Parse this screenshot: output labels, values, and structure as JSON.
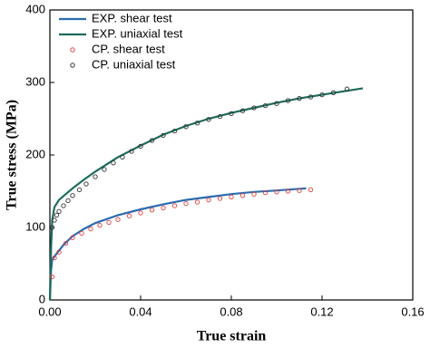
{
  "chart_data": {
    "type": "line",
    "xlabel": "True strain",
    "ylabel": "True stress (MPa)",
    "xlim": [
      0,
      0.16
    ],
    "ylim": [
      0,
      400
    ],
    "xticks": [
      {
        "value": 0,
        "label": "0.00"
      },
      0.04,
      0.08,
      0.12,
      0.16
    ],
    "yticks": [
      0,
      100,
      200,
      300,
      400
    ],
    "legend": "upper left",
    "series": [
      {
        "name": "EXP. shear test",
        "color": "#2b6cb0",
        "mode": "line",
        "x": [
          0,
          0.0005,
          0.001,
          0.002,
          0.004,
          0.006,
          0.01,
          0.015,
          0.02,
          0.03,
          0.04,
          0.05,
          0.06,
          0.07,
          0.08,
          0.09,
          0.1,
          0.113
        ],
        "values": [
          0,
          40,
          55,
          60,
          68,
          76,
          88,
          98,
          106,
          117,
          125,
          132,
          138,
          142,
          146,
          149,
          151,
          154
        ]
      },
      {
        "name": "EXP. uniaxial test",
        "color": "#1d6b5c",
        "mode": "line",
        "x": [
          0,
          0.0005,
          0.001,
          0.002,
          0.004,
          0.007,
          0.01,
          0.015,
          0.02,
          0.03,
          0.04,
          0.05,
          0.06,
          0.07,
          0.08,
          0.09,
          0.1,
          0.11,
          0.12,
          0.13,
          0.138
        ],
        "values": [
          0,
          70,
          110,
          128,
          138,
          146,
          154,
          166,
          177,
          197,
          213,
          228,
          240,
          250,
          258,
          265,
          272,
          278,
          283,
          288,
          292
        ]
      },
      {
        "name": "CP. shear test",
        "color": "#e04040",
        "mode": "markers",
        "x": [
          0.001,
          0.002,
          0.004,
          0.007,
          0.01,
          0.014,
          0.018,
          0.022,
          0.026,
          0.03,
          0.035,
          0.04,
          0.045,
          0.05,
          0.055,
          0.06,
          0.065,
          0.07,
          0.075,
          0.08,
          0.085,
          0.09,
          0.095,
          0.1,
          0.105,
          0.11,
          0.115
        ],
        "values": [
          32,
          58,
          66,
          78,
          86,
          92,
          98,
          103,
          107,
          111,
          116,
          120,
          124,
          127,
          130,
          133,
          135,
          138,
          140,
          142,
          144,
          146,
          148,
          149,
          150,
          151,
          152
        ]
      },
      {
        "name": "CP. uniaxial test",
        "color": "#333333",
        "mode": "markers",
        "x": [
          0.001,
          0.002,
          0.003,
          0.004,
          0.006,
          0.008,
          0.01,
          0.013,
          0.016,
          0.02,
          0.024,
          0.028,
          0.032,
          0.036,
          0.04,
          0.045,
          0.05,
          0.055,
          0.06,
          0.065,
          0.07,
          0.075,
          0.08,
          0.085,
          0.09,
          0.095,
          0.1,
          0.105,
          0.11,
          0.115,
          0.12,
          0.125,
          0.131
        ],
        "values": [
          100,
          110,
          117,
          122,
          130,
          137,
          144,
          152,
          160,
          170,
          180,
          189,
          197,
          205,
          212,
          220,
          227,
          233,
          239,
          244,
          249,
          253,
          257,
          261,
          265,
          268,
          271,
          275,
          278,
          280,
          283,
          286,
          291
        ]
      }
    ]
  }
}
